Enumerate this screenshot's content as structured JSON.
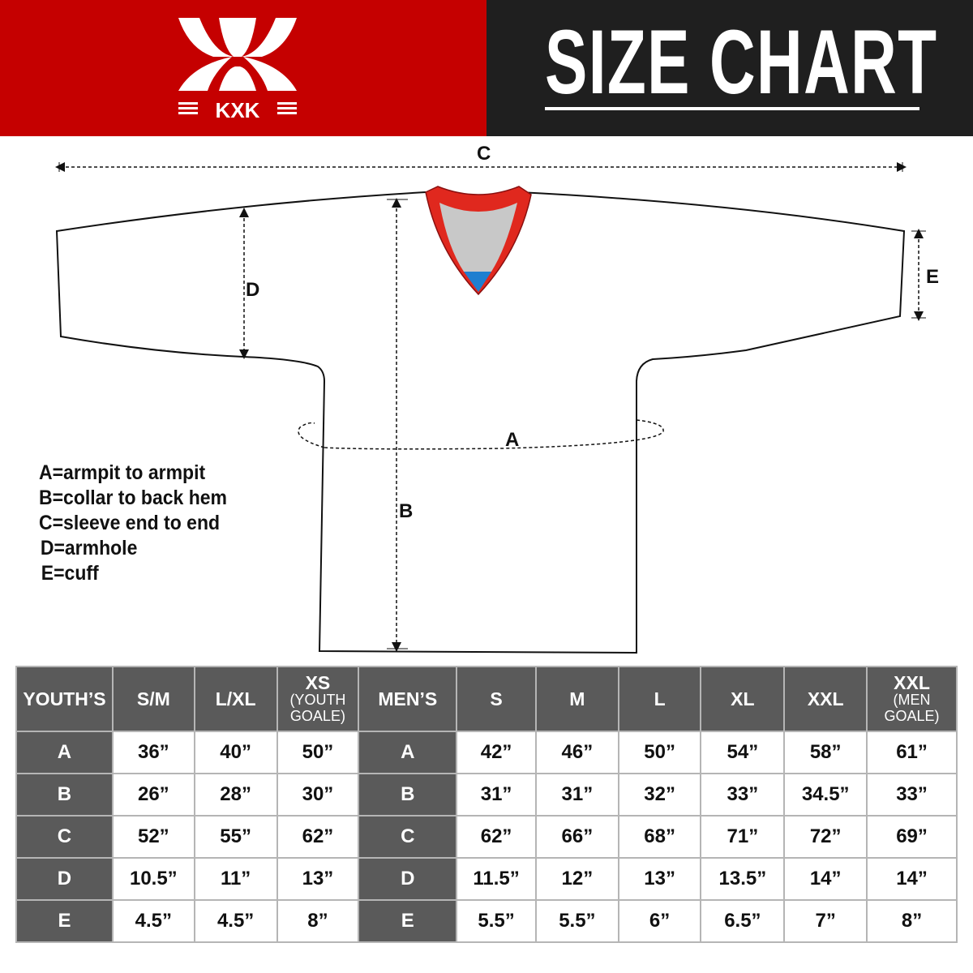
{
  "header": {
    "brand": "KXK",
    "title": "SIZE CHART",
    "colors": {
      "brand_red": "#c50000",
      "dark": "#1f1f1f",
      "table_header": "#5a5a5a"
    }
  },
  "diagram": {
    "labels": {
      "a": "A",
      "b": "B",
      "c": "C",
      "d": "D",
      "e": "E"
    },
    "legend": [
      "A=armpit to armpit",
      "B=collar to back hem",
      "C=sleeve end to end",
      "D=armhole",
      "E=cuff"
    ]
  },
  "table": {
    "youth_header": "YOUTH’S",
    "youth_sizes": [
      {
        "label": "S/M"
      },
      {
        "label": "L/XL"
      },
      {
        "label": "XS",
        "note": "(YOUTH GOALE)"
      }
    ],
    "men_header": "MEN’S",
    "men_sizes": [
      {
        "label": "S"
      },
      {
        "label": "M"
      },
      {
        "label": "L"
      },
      {
        "label": "XL"
      },
      {
        "label": "XXL"
      },
      {
        "label": "XXL",
        "note": "(MEN GOALE)"
      }
    ],
    "rows": [
      {
        "key": "A",
        "youth": [
          "36”",
          "40”",
          "50”"
        ],
        "men": [
          "42”",
          "46”",
          "50”",
          "54”",
          "58”",
          "61”"
        ]
      },
      {
        "key": "B",
        "youth": [
          "26”",
          "28”",
          "30”"
        ],
        "men": [
          "31”",
          "31”",
          "32”",
          "33”",
          "34.5”",
          "33”"
        ]
      },
      {
        "key": "C",
        "youth": [
          "52”",
          "55”",
          "62”"
        ],
        "men": [
          "62”",
          "66”",
          "68”",
          "71”",
          "72”",
          "69”"
        ]
      },
      {
        "key": "D",
        "youth": [
          "10.5”",
          "11”",
          "13”"
        ],
        "men": [
          "11.5”",
          "12”",
          "13”",
          "13.5”",
          "14”",
          "14”"
        ]
      },
      {
        "key": "E",
        "youth": [
          "4.5”",
          "4.5”",
          "8”"
        ],
        "men": [
          "5.5”",
          "5.5”",
          "6”",
          "6.5”",
          "7”",
          "8”"
        ]
      }
    ]
  }
}
